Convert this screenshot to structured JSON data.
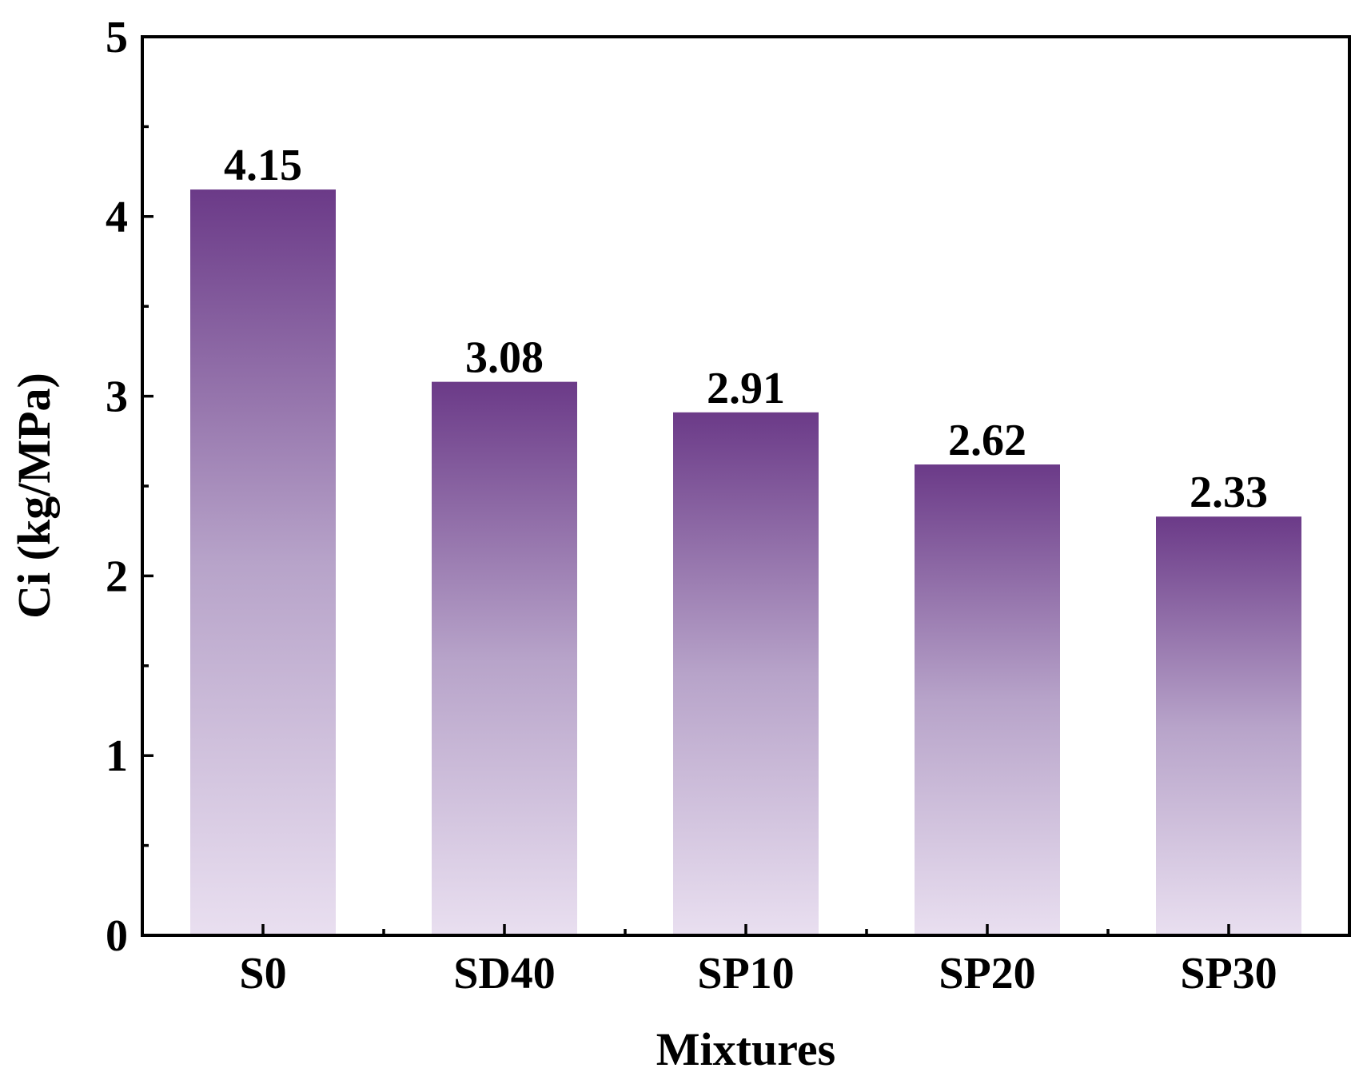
{
  "chart_data": {
    "type": "bar",
    "categories": [
      "S0",
      "SD40",
      "SP10",
      "SP20",
      "SP30"
    ],
    "values": [
      4.15,
      3.08,
      2.91,
      2.62,
      2.33
    ],
    "data_labels": [
      "4.15",
      "3.08",
      "2.91",
      "2.62",
      "2.33"
    ],
    "xlabel": "Mixtures",
    "ylabel": "Ci (kg/MPa)",
    "ylim": [
      0,
      5
    ],
    "yticks": [
      0,
      1,
      2,
      3,
      4,
      5
    ],
    "ytick_labels": [
      "0",
      "1",
      "2",
      "3",
      "4",
      "5"
    ],
    "grid": false,
    "bar_color_top": "#6b3a88",
    "bar_color_bottom": "#e9dff0",
    "frame": "box"
  }
}
